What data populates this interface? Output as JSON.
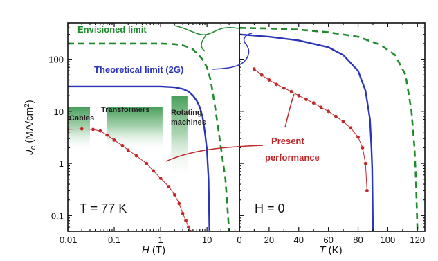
{
  "chart_data": [
    {
      "type": "line",
      "panel": "left",
      "xscale": "log",
      "yscale": "log",
      "xlim": [
        0.01,
        50
      ],
      "ylim": [
        0.05,
        500
      ],
      "xlabel": "H",
      "xunit": "(T)",
      "ylabel": "J",
      "ylabel_sub": "c",
      "yunit": "(MA/cm",
      "yunit_sup": "2",
      "yunit_close": ")",
      "xticks": [
        0.01,
        0.1,
        1,
        10
      ],
      "xtick_labels": [
        "0.01",
        "0.1",
        "1",
        "10"
      ],
      "yticks": [
        0.1,
        1,
        10,
        100
      ],
      "ytick_labels": [
        "0.1",
        "1",
        "10",
        "100"
      ],
      "condition": "T = 77 K",
      "series": [
        {
          "name": "Envisioned limit",
          "style": "dashed",
          "color": "#1e8a2a",
          "points": [
            [
              0.01,
              200
            ],
            [
              1,
              200
            ],
            [
              2,
              195
            ],
            [
              3,
              185
            ],
            [
              4,
              170
            ],
            [
              5,
              155
            ],
            [
              6,
              130
            ],
            [
              8,
              100
            ],
            [
              10,
              70
            ],
            [
              12,
              40
            ],
            [
              15,
              12
            ],
            [
              20,
              2
            ],
            [
              25,
              0.5
            ],
            [
              30,
              0.05
            ]
          ]
        },
        {
          "name": "Theoretical limit (2G)",
          "style": "solid",
          "color": "#2b35b8",
          "points": [
            [
              0.01,
              30
            ],
            [
              1,
              30
            ],
            [
              2,
              29
            ],
            [
              3,
              27
            ],
            [
              4,
              24
            ],
            [
              5,
              20
            ],
            [
              6,
              16
            ],
            [
              7,
              12
            ],
            [
              8,
              8
            ],
            [
              9,
              4
            ],
            [
              10,
              1.8
            ],
            [
              10.8,
              0.5
            ],
            [
              11.3,
              0.05
            ]
          ]
        },
        {
          "name": "Present performance",
          "style": "markers",
          "color": "#c0282a",
          "points": [
            [
              0.01,
              4.5
            ],
            [
              0.02,
              4.6
            ],
            [
              0.035,
              4.5
            ],
            [
              0.05,
              4.2
            ],
            [
              0.07,
              3.5
            ],
            [
              0.1,
              2.8
            ],
            [
              0.15,
              2.2
            ],
            [
              0.2,
              1.8
            ],
            [
              0.3,
              1.4
            ],
            [
              0.5,
              1.0
            ],
            [
              0.7,
              0.72
            ],
            [
              1,
              0.52
            ],
            [
              1.5,
              0.36
            ],
            [
              2,
              0.25
            ],
            [
              2.5,
              0.17
            ],
            [
              3,
              0.11
            ],
            [
              3.5,
              0.08
            ],
            [
              4,
              0.06
            ],
            [
              4.3,
              0.05
            ]
          ]
        }
      ],
      "applications": [
        {
          "label": "Cables",
          "h_range": [
            0.01,
            0.03
          ],
          "jc_range": [
            4,
            12
          ]
        },
        {
          "label": "Transformers",
          "h_range": [
            0.07,
            1.1
          ],
          "jc_range": [
            4,
            12
          ]
        },
        {
          "label": "Rotating machines",
          "label_line1": "Rotating",
          "label_line2": "machines",
          "h_range": [
            1.7,
            3.8
          ],
          "jc_range": [
            1.2,
            20
          ]
        }
      ]
    },
    {
      "type": "line",
      "panel": "right",
      "xscale": "linear",
      "yscale": "log",
      "xlim": [
        0,
        125
      ],
      "ylim": [
        0.05,
        500
      ],
      "xlabel": "T",
      "xunit": "(K)",
      "xticks": [
        0,
        20,
        40,
        60,
        80,
        100,
        120
      ],
      "xtick_labels": [
        "0",
        "20",
        "40",
        "60",
        "80",
        "100",
        "120"
      ],
      "condition": "H = 0",
      "series": [
        {
          "name": "Envisioned limit",
          "style": "dashed",
          "color": "#1e8a2a",
          "points": [
            [
              0,
              400
            ],
            [
              20,
              390
            ],
            [
              40,
              370
            ],
            [
              60,
              330
            ],
            [
              80,
              270
            ],
            [
              95,
              190
            ],
            [
              105,
              120
            ],
            [
              112,
              50
            ],
            [
              116,
              10
            ],
            [
              118,
              2
            ],
            [
              119,
              0.5
            ],
            [
              120,
              0.05
            ]
          ]
        },
        {
          "name": "Theoretical limit (2G)",
          "style": "solid",
          "color": "#2b35b8",
          "points": [
            [
              0,
              300
            ],
            [
              20,
              270
            ],
            [
              40,
              230
            ],
            [
              60,
              170
            ],
            [
              70,
              120
            ],
            [
              80,
              60
            ],
            [
              85,
              25
            ],
            [
              88,
              7
            ],
            [
              89,
              2
            ],
            [
              89.5,
              0.8
            ],
            [
              90,
              0.05
            ]
          ]
        },
        {
          "name": "Present performance",
          "style": "markers",
          "color": "#c0282a",
          "points": [
            [
              10,
              65
            ],
            [
              15,
              50
            ],
            [
              20,
              40
            ],
            [
              25,
              33
            ],
            [
              30,
              28
            ],
            [
              35,
              24
            ],
            [
              40,
              20
            ],
            [
              45,
              17
            ],
            [
              50,
              14.5
            ],
            [
              55,
              12
            ],
            [
              60,
              10
            ],
            [
              65,
              8
            ],
            [
              70,
              6.3
            ],
            [
              75,
              4.8
            ],
            [
              80,
              3.2
            ],
            [
              83,
              2
            ],
            [
              85,
              1
            ],
            [
              86,
              0.3
            ]
          ]
        }
      ]
    }
  ],
  "annotations": {
    "envisioned": "Envisioned limit",
    "theoretical": "Theoretical limit (2G)",
    "present_line1": "Present",
    "present_line2": "performance"
  },
  "colors": {
    "envisioned": "#1e8a2a",
    "theoretical": "#2b35b8",
    "present": "#c0282a",
    "application_box": "#5aa865"
  }
}
